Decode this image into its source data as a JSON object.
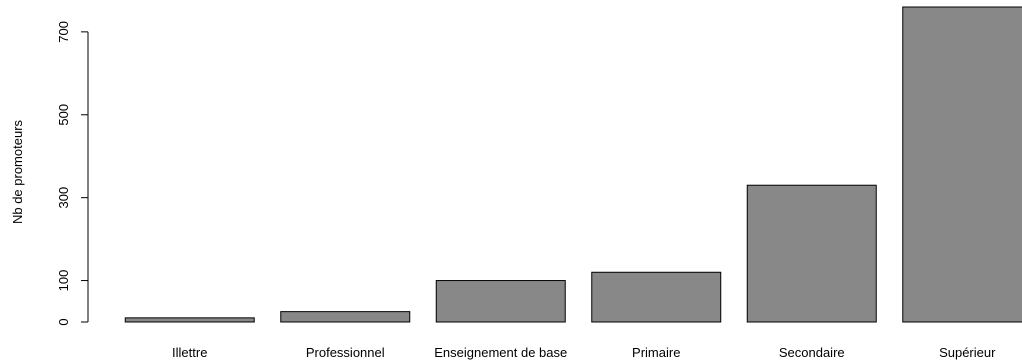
{
  "chart_data": {
    "type": "bar",
    "categories": [
      "Illettre",
      "Professionnel",
      "Enseignement de base",
      "Primaire",
      "Secondaire",
      "Supérieur"
    ],
    "values": [
      10,
      25,
      100,
      120,
      330,
      760
    ],
    "ylabel": "Nb de promoteurs",
    "yticks": [
      0,
      100,
      300,
      500,
      700
    ],
    "ylim": [
      0,
      760
    ],
    "grid": false,
    "bar_color": "#888888",
    "bar_edge_color": "#000000"
  }
}
